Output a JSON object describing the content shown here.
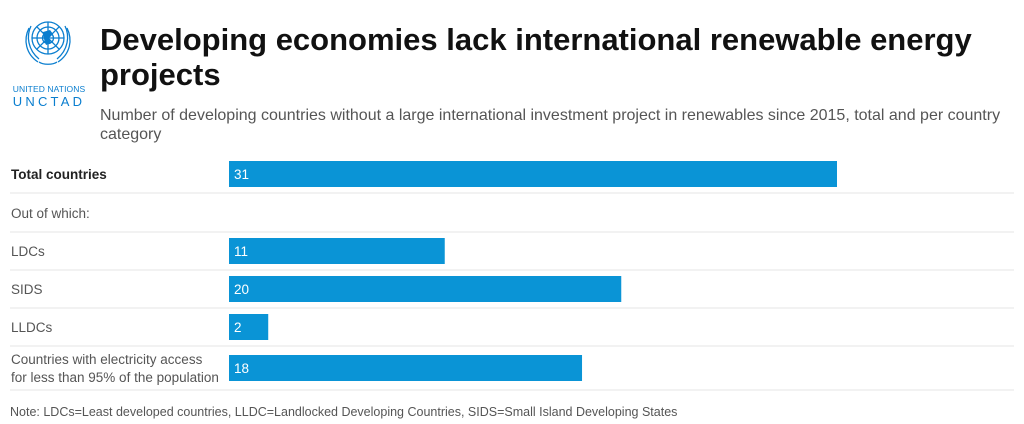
{
  "logo": {
    "line1": "UNITED NATIONS",
    "line2": "UNCTAD",
    "color": "#0a7ecf"
  },
  "title": "Developing economies lack international renewable energy projects",
  "subtitle": "Number of developing countries without a large international investment project in renewables since 2015, total and per country category",
  "note": "Note: LDCs=Least developed countries, LLDC=Landlocked Developing Countries, SIDS=Small Island Developing States",
  "colors": {
    "bar": "#0a94d6",
    "divider": "#e6e6e6"
  },
  "chart_data": {
    "type": "bar",
    "orientation": "horizontal",
    "categories": [
      "Total countries",
      "Out of which:",
      "LDCs",
      "SIDS",
      "LLDCs",
      "Countries with electricity access for less than 95% of the population"
    ],
    "values": [
      31,
      null,
      11,
      20,
      2,
      18
    ],
    "data_labels": [
      "31",
      "",
      "11",
      "20",
      "2",
      "18"
    ],
    "bold_categories": [
      "Total countries"
    ],
    "xlim": [
      0,
      31
    ],
    "grid": false,
    "legend": "none"
  }
}
